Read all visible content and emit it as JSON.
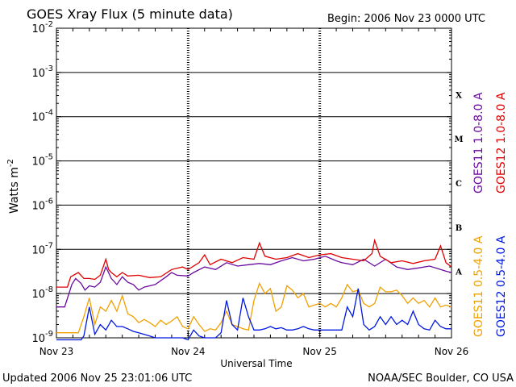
{
  "header": {
    "title": "GOES Xray Flux (5 minute data)",
    "begin": "Begin:  2006 Nov 23 0000 UTC"
  },
  "footer": {
    "updated": "Updated 2006 Nov 25 23:01:06 UTC",
    "source": "NOAA/SEC Boulder, CO USA"
  },
  "colors": {
    "goes11_long": "#6a0aa0",
    "goes12_long": "#e00000",
    "goes11_short": "#f0a000",
    "goes12_short": "#0018e0",
    "grid": "#000000"
  },
  "chart_data": {
    "type": "line",
    "title": "GOES Xray Flux (5 minute data)",
    "xlabel": "Universal Time",
    "ylabel": "Watts m",
    "ylabel_sup": "-2",
    "yscale": "log",
    "ylim": [
      1e-09,
      0.01
    ],
    "xlim": [
      0,
      72
    ],
    "x_unit": "hours since 2006 Nov 23 0000 UTC",
    "x_ticks": [
      {
        "x": 0,
        "label": "Nov 23"
      },
      {
        "x": 24,
        "label": "Nov 24"
      },
      {
        "x": 48,
        "label": "Nov 25"
      },
      {
        "x": 72,
        "label": "Nov 26"
      }
    ],
    "y_ticks": [
      {
        "exp": -9,
        "base": "10",
        "sup": "-9"
      },
      {
        "exp": -8,
        "base": "10",
        "sup": "-8"
      },
      {
        "exp": -7,
        "base": "10",
        "sup": "-7"
      },
      {
        "exp": -6,
        "base": "10",
        "sup": "-6"
      },
      {
        "exp": -5,
        "base": "10",
        "sup": "-5"
      },
      {
        "exp": -4,
        "base": "10",
        "sup": "-4"
      },
      {
        "exp": -3,
        "base": "10",
        "sup": "-3"
      },
      {
        "exp": -2,
        "base": "10",
        "sup": "-2"
      }
    ],
    "flare_classes": [
      {
        "label": "A",
        "exp": -8
      },
      {
        "label": "B",
        "exp": -7
      },
      {
        "label": "C",
        "exp": -6
      },
      {
        "label": "M",
        "exp": -5
      },
      {
        "label": "X",
        "exp": -4
      }
    ],
    "legend_right_top": [
      "GOES11 1.0-8.0 A",
      "GOES12 1.0-8.0 A"
    ],
    "legend_right_bottom": [
      "GOES11 0.5-4.0 A",
      "GOES12 0.5-4.0 A"
    ],
    "series": [
      {
        "name": "GOES11 1.0-8.0 A",
        "color": "#6a0aa0",
        "x": [
          0,
          1.5,
          2.8,
          3.5,
          4.5,
          5.2,
          6,
          7,
          8,
          9,
          10,
          11,
          12,
          13,
          14,
          15,
          16,
          18,
          20,
          21,
          22,
          24,
          25,
          27,
          29,
          31,
          33,
          35,
          37,
          39,
          41,
          43,
          45,
          47,
          49,
          51,
          52,
          54,
          56,
          58,
          60,
          62,
          64,
          66,
          68,
          70,
          71,
          72
        ],
        "y": [
          5e-09,
          5e-09,
          1.6e-08,
          2.2e-08,
          1.7e-08,
          1.2e-08,
          1.5e-08,
          1.4e-08,
          1.8e-08,
          4e-08,
          2.2e-08,
          1.6e-08,
          2.4e-08,
          1.8e-08,
          1.6e-08,
          1.2e-08,
          1.4e-08,
          1.6e-08,
          2.4e-08,
          3e-08,
          2.6e-08,
          2.5e-08,
          3e-08,
          4e-08,
          3.5e-08,
          5e-08,
          4.2e-08,
          4.5e-08,
          4.8e-08,
          4.5e-08,
          5.5e-08,
          6.5e-08,
          5.5e-08,
          6e-08,
          7e-08,
          5.5e-08,
          5e-08,
          4.5e-08,
          6e-08,
          4.2e-08,
          6e-08,
          4e-08,
          3.5e-08,
          3.8e-08,
          4.2e-08,
          3.5e-08,
          3.2e-08,
          3e-08
        ]
      },
      {
        "name": "GOES12 1.0-8.0 A",
        "color": "#e00000",
        "x": [
          0,
          2,
          2.6,
          4,
          5,
          6,
          7,
          8,
          9,
          9.5,
          10,
          11,
          12,
          13,
          15,
          17,
          19,
          21,
          23,
          24,
          26,
          27,
          28,
          30,
          32,
          34,
          36,
          37,
          38,
          40,
          42,
          44,
          46,
          48,
          50,
          52,
          54,
          56,
          57.5,
          58,
          59,
          61,
          63,
          65,
          67,
          69,
          70,
          71,
          72
        ],
        "y": [
          1.4e-08,
          1.4e-08,
          2.4e-08,
          3e-08,
          2.2e-08,
          2.2e-08,
          2.1e-08,
          2.6e-08,
          6e-08,
          3.5e-08,
          3e-08,
          2.4e-08,
          3e-08,
          2.5e-08,
          2.6e-08,
          2.3e-08,
          2.4e-08,
          3.5e-08,
          4e-08,
          3.5e-08,
          5e-08,
          7.5e-08,
          4.5e-08,
          6e-08,
          5e-08,
          6.5e-08,
          6e-08,
          1.4e-07,
          7e-08,
          6e-08,
          6.5e-08,
          8e-08,
          6.5e-08,
          7.5e-08,
          8e-08,
          6.5e-08,
          6e-08,
          5.5e-08,
          8e-08,
          1.6e-07,
          7e-08,
          5e-08,
          5.5e-08,
          4.8e-08,
          5.5e-08,
          6e-08,
          1.2e-07,
          5e-08,
          4e-08
        ]
      },
      {
        "name": "GOES11 0.5-4.0 A",
        "color": "#f0a000",
        "x": [
          0,
          4,
          5,
          6,
          7,
          8,
          9,
          10,
          11,
          12,
          13,
          14,
          15,
          16,
          17,
          18,
          19,
          20,
          21,
          22,
          23,
          24,
          25,
          26,
          27,
          28,
          29,
          30,
          31,
          32,
          33,
          34,
          35,
          36,
          37,
          38,
          39,
          40,
          41,
          42,
          43,
          44,
          45,
          46,
          47,
          48,
          49,
          50,
          51,
          52,
          53,
          54,
          55,
          56,
          57,
          58,
          59,
          60,
          61,
          62,
          63,
          64,
          65,
          66,
          67,
          68,
          69,
          70,
          71,
          72
        ],
        "y": [
          1.3e-09,
          1.3e-09,
          3e-09,
          8e-09,
          2e-09,
          5e-09,
          4e-09,
          7e-09,
          4e-09,
          9e-09,
          3.5e-09,
          3e-09,
          2.2e-09,
          2.6e-09,
          2.2e-09,
          1.8e-09,
          2.5e-09,
          2e-09,
          2.4e-09,
          3e-09,
          1.8e-09,
          1.6e-09,
          3e-09,
          2e-09,
          1.4e-09,
          1.6e-09,
          1.5e-09,
          2.2e-09,
          4e-09,
          2e-09,
          1.8e-09,
          1.6e-09,
          1.5e-09,
          7e-09,
          1.7e-08,
          1e-08,
          1.3e-08,
          4e-09,
          5e-09,
          1.5e-08,
          1.2e-08,
          8e-09,
          1e-08,
          5e-09,
          5.5e-09,
          6e-09,
          5e-09,
          6e-09,
          5e-09,
          8e-09,
          1.6e-08,
          1.1e-08,
          1.2e-08,
          6e-09,
          5e-09,
          6e-09,
          1.4e-08,
          1.1e-08,
          1.1e-08,
          1.2e-08,
          9e-09,
          6e-09,
          8e-09,
          6e-09,
          7e-09,
          5e-09,
          8e-09,
          5e-09,
          5.5e-09,
          5e-09
        ]
      },
      {
        "name": "GOES12 0.5-4.0 A",
        "color": "#0018e0",
        "x": [
          0,
          4.5,
          5,
          6,
          7,
          8,
          9,
          10,
          11,
          12,
          13,
          14,
          15,
          16,
          17,
          18,
          19,
          20,
          21,
          22,
          23,
          24,
          25,
          26,
          27,
          28,
          29,
          30,
          31,
          32,
          33,
          34,
          35,
          36,
          37,
          38,
          39,
          40,
          41,
          42,
          43,
          44,
          45,
          46,
          47,
          48,
          49,
          50,
          51,
          52,
          53,
          54,
          55,
          56,
          57,
          58,
          59,
          60,
          61,
          62,
          63,
          64,
          65,
          66,
          67,
          68,
          69,
          70,
          71,
          72
        ],
        "y": [
          9e-10,
          9e-10,
          1.1e-09,
          5e-09,
          1.2e-09,
          2e-09,
          1.5e-09,
          2.5e-09,
          1.8e-09,
          1.8e-09,
          1.6e-09,
          1.4e-09,
          1.3e-09,
          1.2e-09,
          1.1e-09,
          1e-09,
          1e-09,
          1e-09,
          1e-09,
          1e-09,
          1e-09,
          9e-10,
          1.5e-09,
          1.1e-09,
          1e-09,
          1e-09,
          1e-09,
          1.3e-09,
          7e-09,
          2e-09,
          1.5e-09,
          8e-09,
          3e-09,
          1.5e-09,
          1.5e-09,
          1.6e-09,
          1.8e-09,
          1.6e-09,
          1.7e-09,
          1.5e-09,
          1.5e-09,
          1.6e-09,
          1.8e-09,
          1.6e-09,
          1.5e-09,
          1.5e-09,
          1.5e-09,
          1.5e-09,
          1.5e-09,
          1.5e-09,
          5e-09,
          3e-09,
          1.3e-08,
          2e-09,
          1.5e-09,
          1.8e-09,
          3e-09,
          2e-09,
          3e-09,
          2e-09,
          2.5e-09,
          2e-09,
          4e-09,
          2e-09,
          1.6e-09,
          1.5e-09,
          2.5e-09,
          1.8e-09,
          1.6e-09,
          1.6e-09
        ]
      }
    ]
  }
}
